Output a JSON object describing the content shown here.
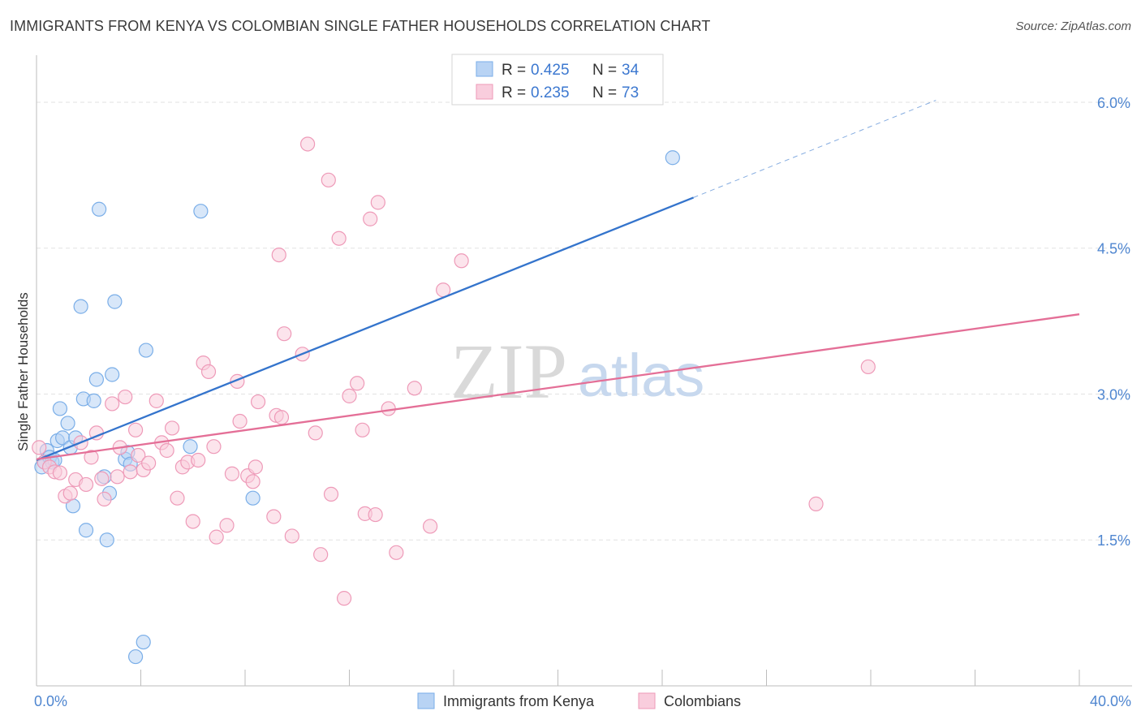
{
  "title": "IMMIGRANTS FROM KENYA VS COLOMBIAN SINGLE FATHER HOUSEHOLDS CORRELATION CHART",
  "source": "Source: ZipAtlas.com",
  "watermark": {
    "zip": "ZIP",
    "atlas": "atlas"
  },
  "chart_data": {
    "type": "scatter",
    "ylabel": "Single Father Households",
    "xlabel": "",
    "xlim": [
      0,
      40
    ],
    "ylim": [
      0,
      6.4
    ],
    "x_tick_labels": [
      {
        "value": 0,
        "label": "0.0%"
      },
      {
        "value": 40,
        "label": "40.0%"
      }
    ],
    "y_tick_labels": [
      {
        "value": 1.5,
        "label": "1.5%"
      },
      {
        "value": 3.0,
        "label": "3.0%"
      },
      {
        "value": 4.5,
        "label": "4.5%"
      },
      {
        "value": 6.0,
        "label": "6.0%"
      }
    ],
    "grid": true,
    "legend_position": "top-center",
    "series": [
      {
        "name": "Immigrants from Kenya",
        "r_label": "R =",
        "r_value": "0.425",
        "n_label": "N =",
        "n_value": "34",
        "color": "#7aaee8",
        "fill": "#b8d3f4",
        "line_color": "#3474cc",
        "trend": {
          "x0": 0,
          "y0": 2.32,
          "x1": 25.2,
          "y1": 5.02,
          "dash_to_x": 34.5,
          "dash_to_y": 6.02
        },
        "points": [
          [
            0.2,
            2.25
          ],
          [
            0.3,
            2.3
          ],
          [
            0.4,
            2.42
          ],
          [
            0.5,
            2.35
          ],
          [
            0.6,
            2.3
          ],
          [
            0.7,
            2.32
          ],
          [
            0.8,
            2.52
          ],
          [
            0.9,
            2.85
          ],
          [
            1.0,
            2.55
          ],
          [
            1.2,
            2.7
          ],
          [
            1.3,
            2.45
          ],
          [
            1.4,
            1.85
          ],
          [
            1.5,
            2.55
          ],
          [
            1.7,
            3.9
          ],
          [
            1.8,
            2.95
          ],
          [
            1.9,
            1.6
          ],
          [
            2.2,
            2.93
          ],
          [
            2.3,
            3.15
          ],
          [
            2.4,
            4.9
          ],
          [
            2.6,
            2.15
          ],
          [
            2.7,
            1.5
          ],
          [
            2.8,
            1.98
          ],
          [
            2.9,
            3.2
          ],
          [
            3.0,
            3.95
          ],
          [
            3.4,
            2.33
          ],
          [
            3.5,
            2.4
          ],
          [
            3.6,
            2.28
          ],
          [
            3.8,
            0.3
          ],
          [
            4.1,
            0.45
          ],
          [
            4.2,
            3.45
          ],
          [
            5.9,
            2.46
          ],
          [
            6.3,
            4.88
          ],
          [
            8.3,
            1.93
          ],
          [
            24.4,
            5.43
          ]
        ]
      },
      {
        "name": "Colombians",
        "r_label": "R =",
        "r_value": "0.235",
        "n_label": "N =",
        "n_value": "73",
        "color": "#ee9ab8",
        "fill": "#f9cddd",
        "line_color": "#e46f97",
        "trend": {
          "x0": 0,
          "y0": 2.33,
          "x1": 40,
          "y1": 3.82
        },
        "points": [
          [
            0.1,
            2.45
          ],
          [
            0.3,
            2.3
          ],
          [
            0.5,
            2.25
          ],
          [
            0.7,
            2.2
          ],
          [
            0.9,
            2.19
          ],
          [
            1.1,
            1.95
          ],
          [
            1.3,
            1.98
          ],
          [
            1.5,
            2.12
          ],
          [
            1.7,
            2.5
          ],
          [
            1.9,
            2.07
          ],
          [
            2.1,
            2.35
          ],
          [
            2.3,
            2.6
          ],
          [
            2.5,
            2.13
          ],
          [
            2.6,
            1.92
          ],
          [
            2.9,
            2.9
          ],
          [
            3.1,
            2.15
          ],
          [
            3.2,
            2.45
          ],
          [
            3.4,
            2.97
          ],
          [
            3.6,
            2.2
          ],
          [
            3.8,
            2.63
          ],
          [
            3.9,
            2.37
          ],
          [
            4.1,
            2.22
          ],
          [
            4.3,
            2.29
          ],
          [
            4.6,
            2.93
          ],
          [
            4.8,
            2.5
          ],
          [
            5.0,
            2.42
          ],
          [
            5.2,
            2.65
          ],
          [
            5.4,
            1.93
          ],
          [
            5.6,
            2.25
          ],
          [
            5.8,
            2.3
          ],
          [
            6.0,
            1.69
          ],
          [
            6.2,
            2.32
          ],
          [
            6.4,
            3.32
          ],
          [
            6.6,
            3.23
          ],
          [
            6.8,
            2.46
          ],
          [
            6.9,
            1.53
          ],
          [
            7.3,
            1.65
          ],
          [
            7.5,
            2.18
          ],
          [
            7.7,
            3.13
          ],
          [
            7.8,
            2.72
          ],
          [
            8.1,
            2.16
          ],
          [
            8.3,
            2.1
          ],
          [
            8.4,
            2.25
          ],
          [
            8.5,
            2.92
          ],
          [
            9.1,
            1.74
          ],
          [
            9.2,
            2.78
          ],
          [
            9.3,
            4.43
          ],
          [
            9.4,
            2.76
          ],
          [
            9.5,
            3.62
          ],
          [
            9.8,
            1.54
          ],
          [
            10.2,
            3.41
          ],
          [
            10.4,
            5.57
          ],
          [
            10.7,
            2.6
          ],
          [
            10.9,
            1.35
          ],
          [
            11.2,
            5.2
          ],
          [
            11.3,
            1.97
          ],
          [
            11.6,
            4.6
          ],
          [
            11.8,
            0.9
          ],
          [
            12.0,
            2.98
          ],
          [
            12.3,
            3.11
          ],
          [
            12.5,
            2.63
          ],
          [
            12.6,
            1.77
          ],
          [
            12.8,
            4.8
          ],
          [
            13.0,
            1.76
          ],
          [
            13.1,
            4.97
          ],
          [
            13.5,
            2.85
          ],
          [
            13.8,
            1.37
          ],
          [
            14.5,
            3.06
          ],
          [
            15.1,
            1.64
          ],
          [
            15.6,
            4.07
          ],
          [
            16.3,
            4.37
          ],
          [
            29.9,
            1.87
          ],
          [
            31.9,
            3.28
          ]
        ]
      }
    ]
  }
}
